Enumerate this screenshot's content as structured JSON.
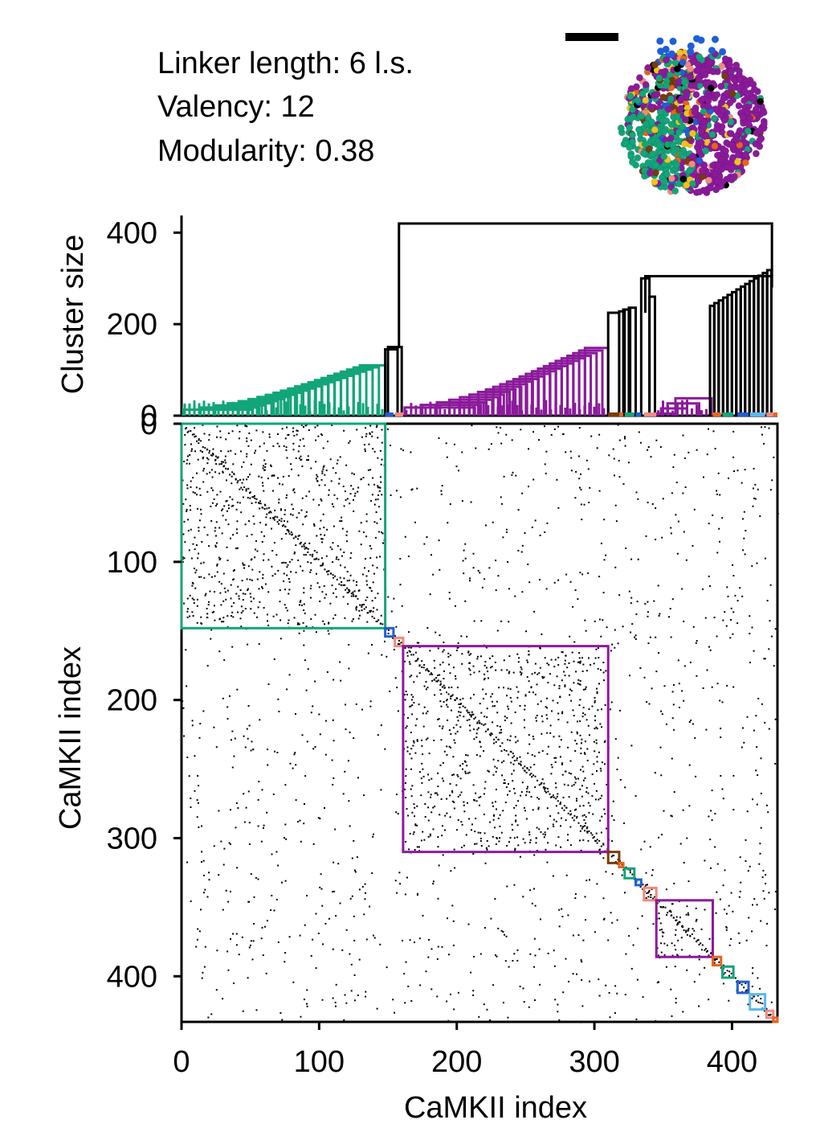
{
  "info": {
    "linker": "Linker length: 6 l.s.",
    "valency": "Valency: 12",
    "modularity": "Modularity: 0.38"
  },
  "colors": {
    "green": "#12a57a",
    "purple": "#8b1a9b",
    "black": "#000000",
    "blue": "#1f5fd6",
    "salmon": "#f08a80",
    "brown": "#7a3b0a",
    "orange": "#e8641a",
    "skyblue": "#5bb8ee",
    "yellow": "#f2c31a"
  },
  "chart_data": [
    {
      "type": "dendrogram",
      "ylabel": "Cluster size",
      "yticks": [
        0,
        200,
        400
      ],
      "ylim": [
        0,
        420
      ],
      "xlim": [
        0,
        433
      ],
      "clusters": [
        {
          "color": "green",
          "start": 0,
          "end": 148,
          "height": 110
        },
        {
          "color": "purple",
          "start": 161,
          "end": 310,
          "height": 148
        },
        {
          "color": "purple",
          "start": 344,
          "end": 385,
          "height": 38
        }
      ],
      "root": {
        "left": 158,
        "right": 429,
        "height": 420
      }
    },
    {
      "type": "heatmap",
      "xlabel": "CaMKII index",
      "ylabel": "CaMKII index",
      "xticks": [
        0,
        100,
        200,
        300,
        400
      ],
      "yticks": [
        0,
        100,
        200,
        300,
        400
      ],
      "xlim": [
        0,
        433
      ],
      "ylim": [
        0,
        433
      ],
      "modules": [
        {
          "color": "green",
          "start": 0,
          "end": 148
        },
        {
          "color": "blue",
          "start": 148,
          "end": 154
        },
        {
          "color": "salmon",
          "start": 155,
          "end": 161
        },
        {
          "color": "purple",
          "start": 161,
          "end": 310
        },
        {
          "color": "brown",
          "start": 310,
          "end": 318
        },
        {
          "color": "orange",
          "start": 318,
          "end": 321
        },
        {
          "color": "green",
          "start": 322,
          "end": 329
        },
        {
          "color": "blue",
          "start": 330,
          "end": 334
        },
        {
          "color": "salmon",
          "start": 336,
          "end": 345
        },
        {
          "color": "purple",
          "start": 345,
          "end": 386
        },
        {
          "color": "orange",
          "start": 386,
          "end": 392
        },
        {
          "color": "green",
          "start": 393,
          "end": 401
        },
        {
          "color": "blue",
          "start": 404,
          "end": 412
        },
        {
          "color": "skyblue",
          "start": 413,
          "end": 424
        },
        {
          "color": "salmon",
          "start": 425,
          "end": 430
        },
        {
          "color": "orange",
          "start": 430,
          "end": 433
        }
      ]
    }
  ]
}
